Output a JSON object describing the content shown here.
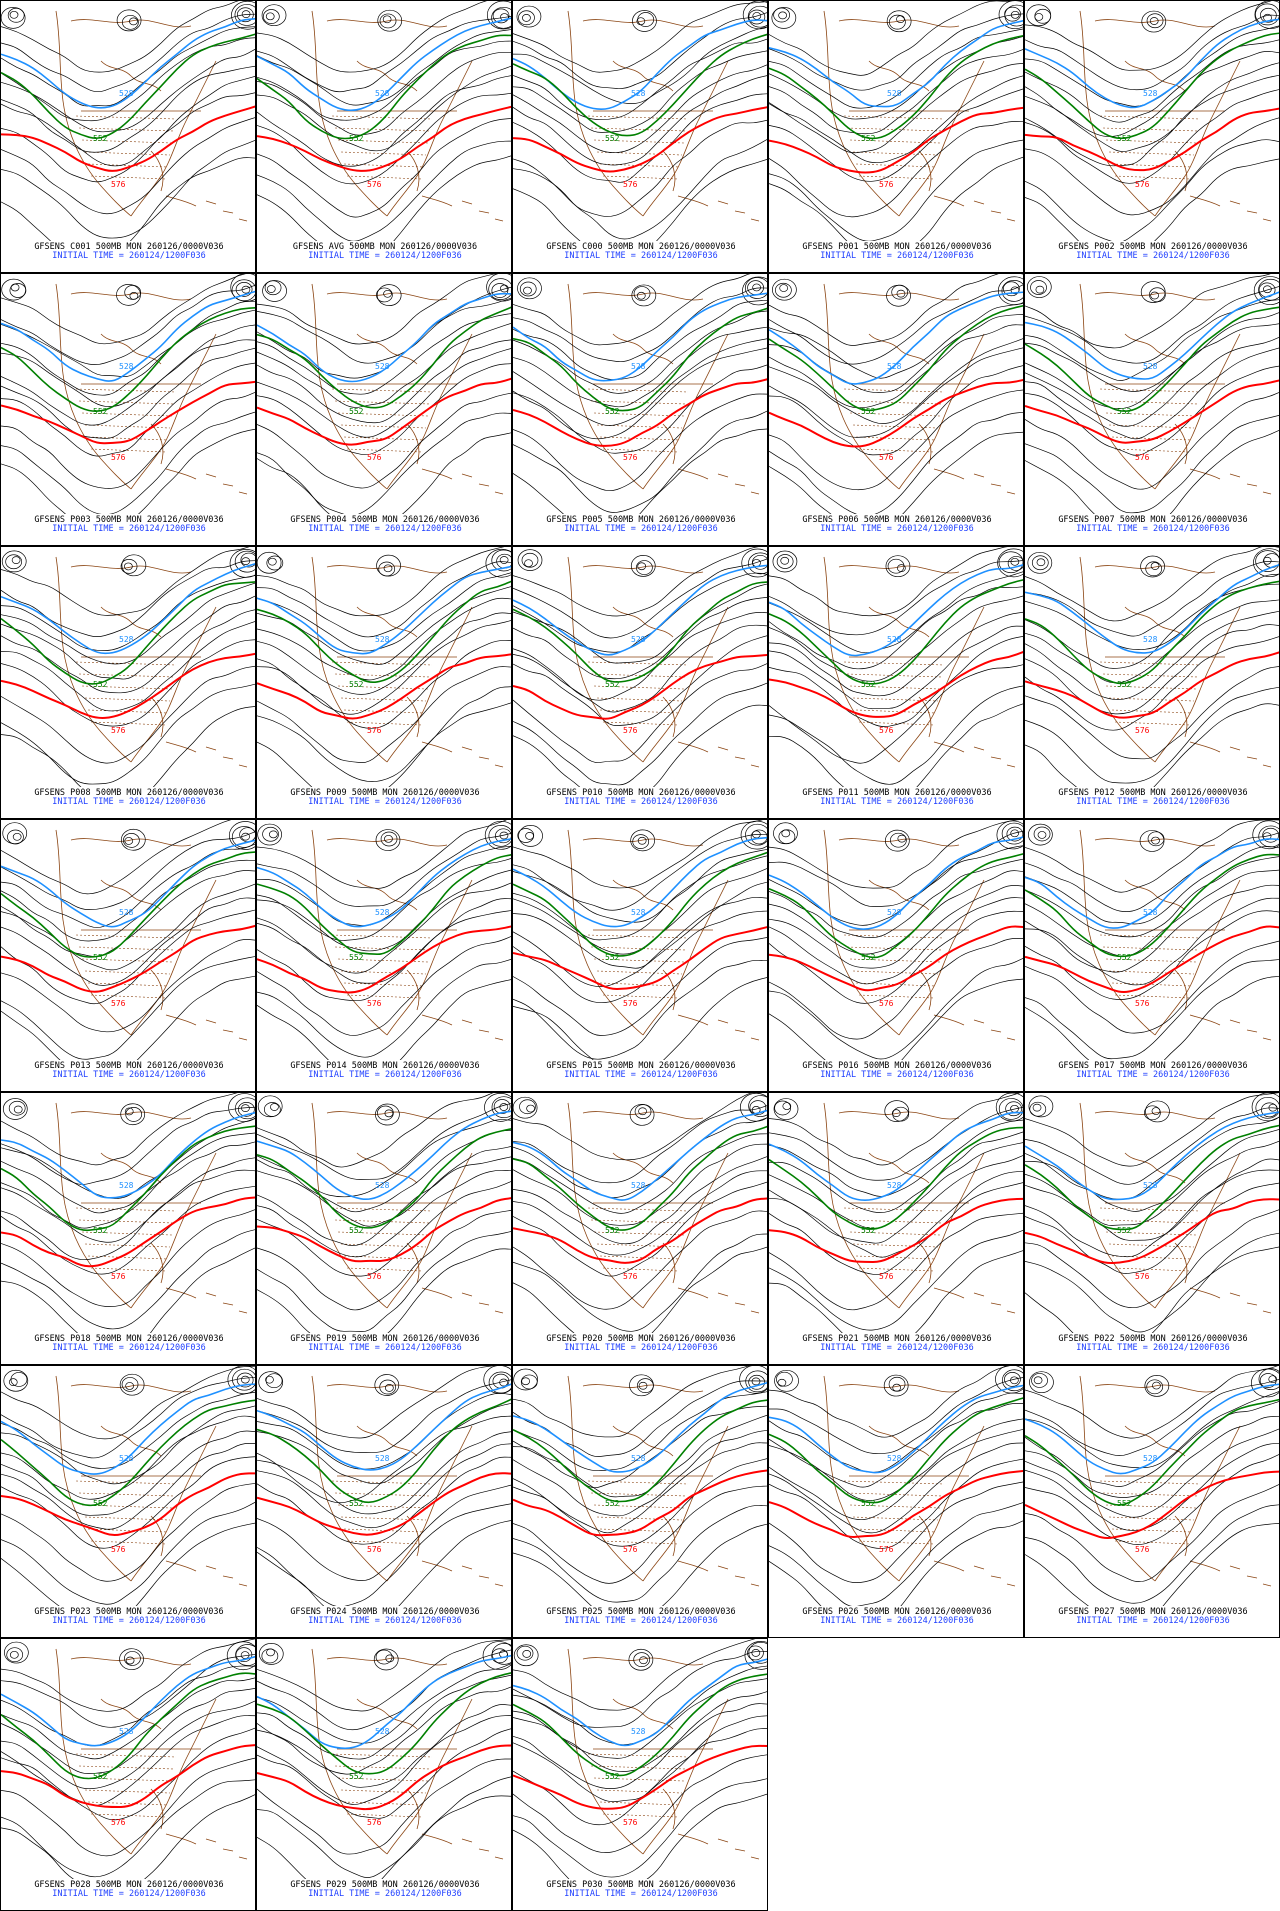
{
  "colors": {
    "contour": "#000000",
    "c528": "#1e90ff",
    "c552": "#008000",
    "c576": "#ff0000",
    "coast": "#8b4513",
    "initial_time_text": "#1f3fff"
  },
  "contour_labels": {
    "blue": "528",
    "green": "552",
    "red": "576"
  },
  "panels": [
    {
      "title": "GFSENS C001 500MB MON 260126/0000V036",
      "init": "INITIAL TIME = 260124/1200F036"
    },
    {
      "title": "GFSENS AVG 500MB MON 260126/0000V036",
      "init": "INITIAL TIME = 260124/1200F036"
    },
    {
      "title": "GFSENS C000 500MB MON 260126/0000V036",
      "init": "INITIAL TIME = 260124/1200F036"
    },
    {
      "title": "GFSENS P001 500MB MON 260126/0000V036",
      "init": "INITIAL TIME = 260124/1200F036"
    },
    {
      "title": "GFSENS P002 500MB MON 260126/0000V036",
      "init": "INITIAL TIME = 260124/1200F036"
    },
    {
      "title": "GFSENS P003 500MB MON 260126/0000V036",
      "init": "INITIAL TIME = 260124/1200F036"
    },
    {
      "title": "GFSENS P004 500MB MON 260126/0000V036",
      "init": "INITIAL TIME = 260124/1200F036"
    },
    {
      "title": "GFSENS P005 500MB MON 260126/0000V036",
      "init": "INITIAL TIME = 260124/1200F036"
    },
    {
      "title": "GFSENS P006 500MB MON 260126/0000V036",
      "init": "INITIAL TIME = 260124/1200F036"
    },
    {
      "title": "GFSENS P007 500MB MON 260126/0000V036",
      "init": "INITIAL TIME = 260124/1200F036"
    },
    {
      "title": "GFSENS P008 500MB MON 260126/0000V036",
      "init": "INITIAL TIME = 260124/1200F036"
    },
    {
      "title": "GFSENS P009 500MB MON 260126/0000V036",
      "init": "INITIAL TIME = 260124/1200F036"
    },
    {
      "title": "GFSENS P010 500MB MON 260126/0000V036",
      "init": "INITIAL TIME = 260124/1200F036"
    },
    {
      "title": "GFSENS P011 500MB MON 260126/0000V036",
      "init": "INITIAL TIME = 260124/1200F036"
    },
    {
      "title": "GFSENS P012 500MB MON 260126/0000V036",
      "init": "INITIAL TIME = 260124/1200F036"
    },
    {
      "title": "GFSENS P013 500MB MON 260126/0000V036",
      "init": "INITIAL TIME = 260124/1200F036"
    },
    {
      "title": "GFSENS P014 500MB MON 260126/0000V036",
      "init": "INITIAL TIME = 260124/1200F036"
    },
    {
      "title": "GFSENS P015 500MB MON 260126/0000V036",
      "init": "INITIAL TIME = 260124/1200F036"
    },
    {
      "title": "GFSENS P016 500MB MON 260126/0000V036",
      "init": "INITIAL TIME = 260124/1200F036"
    },
    {
      "title": "GFSENS P017 500MB MON 260126/0000V036",
      "init": "INITIAL TIME = 260124/1200F036"
    },
    {
      "title": "GFSENS P018 500MB MON 260126/0000V036",
      "init": "INITIAL TIME = 260124/1200F036"
    },
    {
      "title": "GFSENS P019 500MB MON 260126/0000V036",
      "init": "INITIAL TIME = 260124/1200F036"
    },
    {
      "title": "GFSENS P020 500MB MON 260126/0000V036",
      "init": "INITIAL TIME = 260124/1200F036"
    },
    {
      "title": "GFSENS P021 500MB MON 260126/0000V036",
      "init": "INITIAL TIME = 260124/1200F036"
    },
    {
      "title": "GFSENS P022 500MB MON 260126/0000V036",
      "init": "INITIAL TIME = 260124/1200F036"
    },
    {
      "title": "GFSENS P023 500MB MON 260126/0000V036",
      "init": "INITIAL TIME = 260124/1200F036"
    },
    {
      "title": "GFSENS P024 500MB MON 260126/0000V036",
      "init": "INITIAL TIME = 260124/1200F036"
    },
    {
      "title": "GFSENS P025 500MB MON 260126/0000V036",
      "init": "INITIAL TIME = 260124/1200F036"
    },
    {
      "title": "GFSENS P026 500MB MON 260126/0000V036",
      "init": "INITIAL TIME = 260124/1200F036"
    },
    {
      "title": "GFSENS P027 500MB MON 260126/0000V036",
      "init": "INITIAL TIME = 260124/1200F036"
    },
    {
      "title": "GFSENS P028 500MB MON 260126/0000V036",
      "init": "INITIAL TIME = 260124/1200F036"
    },
    {
      "title": "GFSENS P029 500MB MON 260126/0000V036",
      "init": "INITIAL TIME = 260124/1200F036"
    },
    {
      "title": "GFSENS P030 500MB MON 260126/0000V036",
      "init": "INITIAL TIME = 260124/1200F036"
    }
  ]
}
